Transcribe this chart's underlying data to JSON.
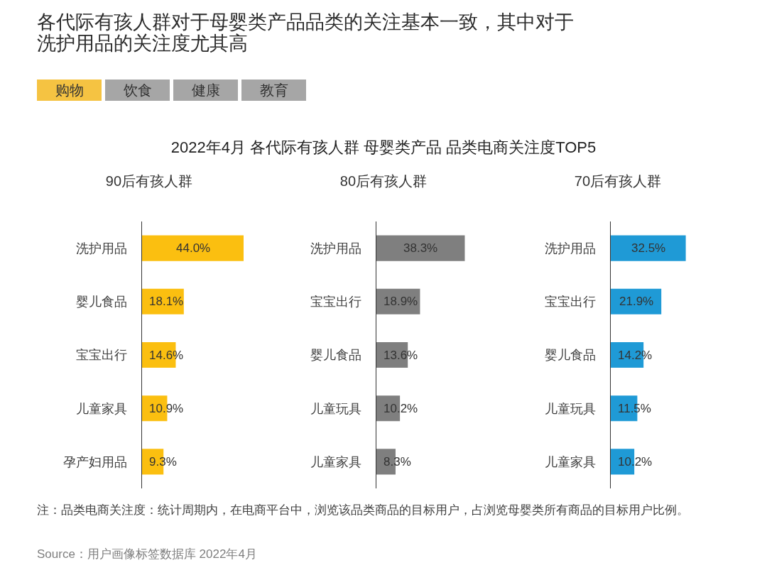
{
  "chart_data": [
    {
      "type": "other",
      "title": "各代际有孩人群对于母婴类产品品类的关注基本一致，其中对于洗护用品的关注度尤其高",
      "subtitle": "2022年4月 各代际有孩人群 母婴类产品 品类电商关注度TOP5",
      "categories": [
        "购物",
        "饮食",
        "健康",
        "教育"
      ],
      "colors": [
        "#f5c342",
        "#a6a6a6",
        "#a6a6a6",
        "#a6a6a6"
      ]
    },
    {
      "type": "bar",
      "orientation": "horizontal",
      "title": "90后有孩人群",
      "categories": [
        "洗护用品",
        "婴儿食品",
        "宝宝出行",
        "儿童家具",
        "孕产妇用品"
      ],
      "values": [
        44.0,
        18.1,
        14.6,
        10.9,
        9.3
      ],
      "value_labels": [
        "44.0%",
        "18.1%",
        "14.6%",
        "10.9%",
        "9.3%"
      ],
      "color": "#fbbf10",
      "tick_labels": "y"
    },
    {
      "type": "bar",
      "orientation": "horizontal",
      "title": "80后有孩人群",
      "categories": [
        "洗护用品",
        "宝宝出行",
        "婴儿食品",
        "儿童玩具",
        "儿童家具"
      ],
      "values": [
        38.3,
        18.9,
        13.6,
        10.2,
        8.3
      ],
      "value_labels": [
        "38.3%",
        "18.9%",
        "13.6%",
        "10.2%",
        "8.3%"
      ],
      "color": "#7f7f7f",
      "tick_labels": "y"
    },
    {
      "type": "bar",
      "orientation": "horizontal",
      "title": "70后有孩人群",
      "categories": [
        "洗护用品",
        "宝宝出行",
        "婴儿食品",
        "儿童玩具",
        "儿童家具"
      ],
      "values": [
        32.5,
        21.9,
        14.2,
        11.5,
        10.2
      ],
      "value_labels": [
        "32.5%",
        "21.9%",
        "14.2%",
        "11.5%",
        "10.2%"
      ],
      "color": "#1f9ad6",
      "tick_labels": "y"
    },
    {
      "type": "other",
      "annotations": [
        "注：品类电商关注度：统计周期内，在电商平台中，浏览该品类商品的目标用户，占浏览母婴类所有商品的目标用户比例。",
        "Source：用户画像标签数据库 2022年4月"
      ]
    }
  ]
}
